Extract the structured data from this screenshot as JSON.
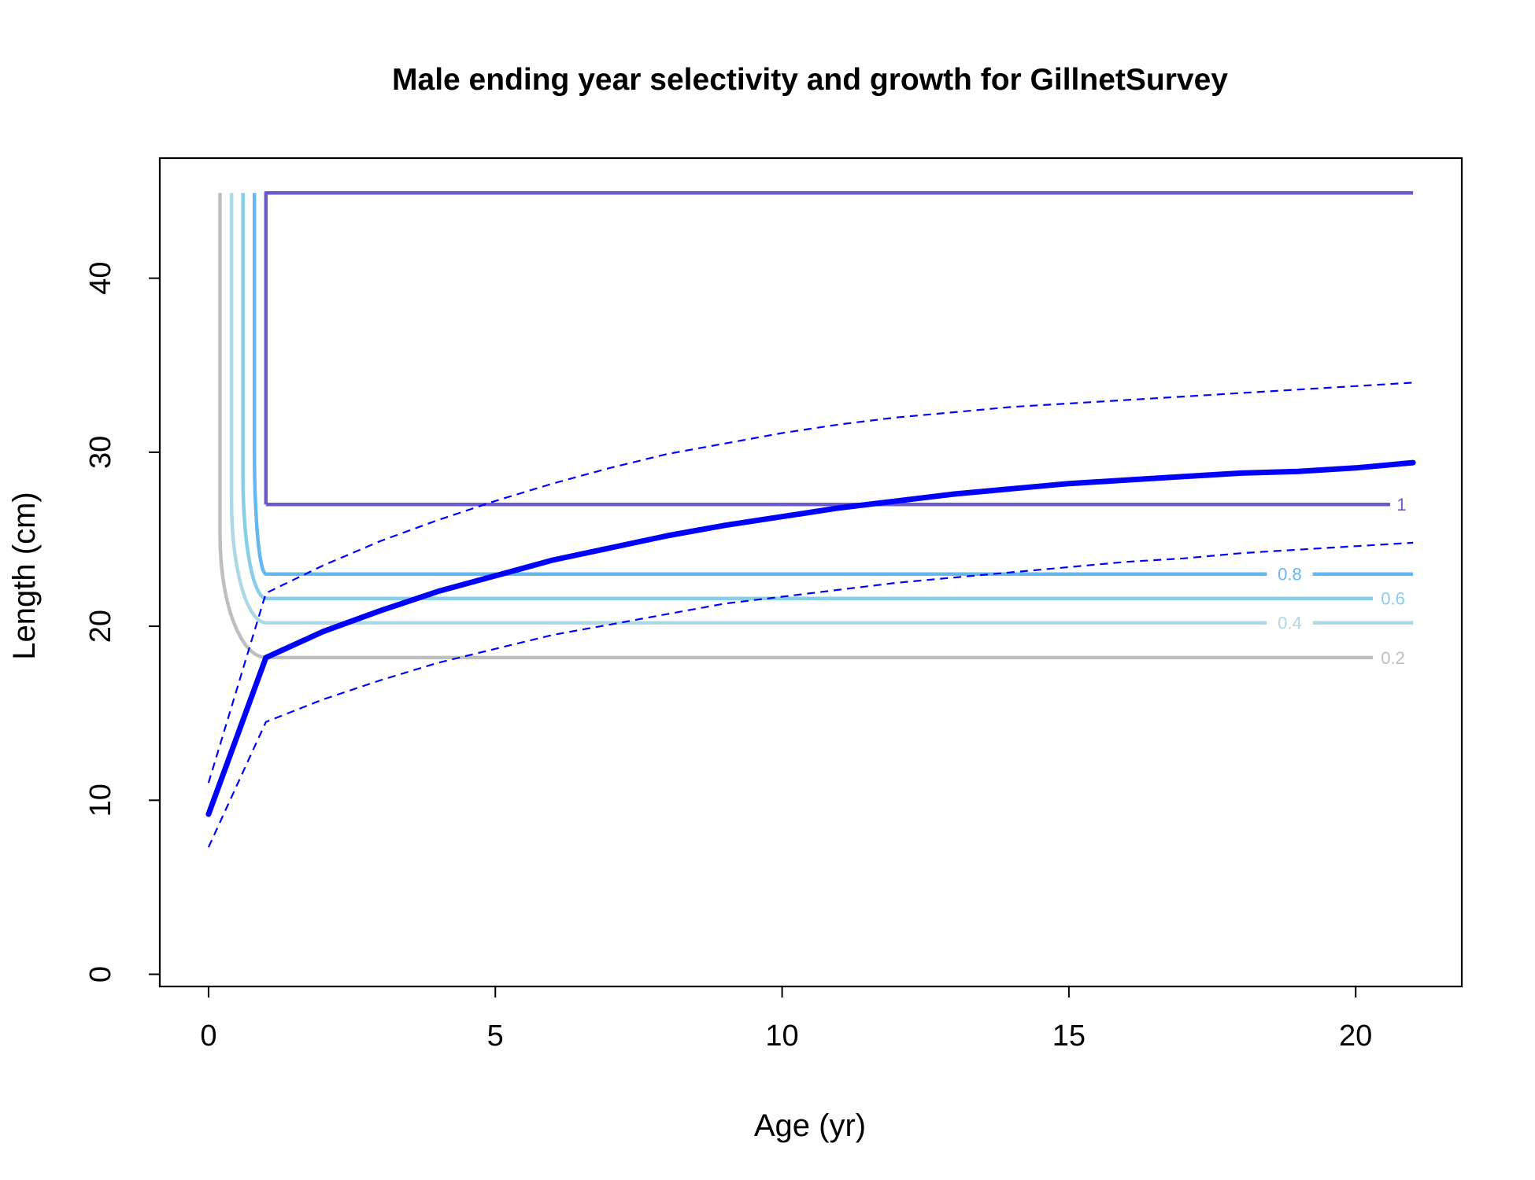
{
  "chart_data": {
    "type": "line",
    "title": "Male ending year selectivity and growth for GillnetSurvey",
    "xlabel": "Age (yr)",
    "ylabel": "Length (cm)",
    "xlim": [
      -0.85,
      21.85
    ],
    "ylim": [
      -0.7,
      46.9
    ],
    "xticks": [
      0,
      5,
      10,
      15,
      20
    ],
    "yticks": [
      0,
      10,
      20,
      30,
      40
    ],
    "x_tick_labels": [
      "0",
      "5",
      "10",
      "15",
      "20"
    ],
    "y_tick_labels": [
      "0",
      "10",
      "20",
      "30",
      "40"
    ],
    "grid": false,
    "legend": "none",
    "growth": {
      "color": "#0000FF",
      "x": [
        0,
        1,
        2,
        3,
        4,
        5,
        6,
        7,
        8,
        9,
        10,
        11,
        12,
        13,
        14,
        15,
        16,
        17,
        18,
        19,
        20,
        21
      ],
      "mean_length": [
        9.2,
        18.2,
        19.7,
        20.9,
        22.0,
        22.9,
        23.8,
        24.5,
        25.2,
        25.8,
        26.3,
        26.8,
        27.2,
        27.6,
        27.9,
        28.2,
        28.4,
        28.6,
        28.8,
        28.9,
        29.1,
        29.4
      ],
      "upper_interval": [
        11.0,
        21.9,
        23.5,
        24.9,
        26.1,
        27.2,
        28.2,
        29.1,
        29.9,
        30.5,
        31.1,
        31.6,
        32.0,
        32.3,
        32.6,
        32.8,
        33.0,
        33.2,
        33.4,
        33.6,
        33.8,
        34.0
      ],
      "lower_interval": [
        7.3,
        14.5,
        15.8,
        16.9,
        17.9,
        18.7,
        19.5,
        20.1,
        20.7,
        21.3,
        21.7,
        22.1,
        22.5,
        22.8,
        23.1,
        23.4,
        23.7,
        23.9,
        24.2,
        24.4,
        24.6,
        24.8
      ]
    },
    "selectivity_contours": [
      {
        "level": "0.2",
        "color": "#BEBEBE",
        "x_start": 0.2,
        "y_top": 44.9,
        "y_bottom": 18.2,
        "knee_x": 1.0,
        "x_end": 20.3,
        "label_x": 20.65
      },
      {
        "level": "0.4",
        "color": "#ADD8E6",
        "x_start": 0.4,
        "y_top": 44.9,
        "y_bottom": 20.2,
        "knee_x": 1.0,
        "x_end": 18.45,
        "label_x": 18.85,
        "x_resume": 19.25,
        "x_final": 21.0
      },
      {
        "level": "0.6",
        "color": "#87CEEB",
        "x_start": 0.6,
        "y_top": 44.9,
        "y_bottom": 21.6,
        "knee_x": 1.0,
        "x_end": 20.3,
        "label_x": 20.65
      },
      {
        "level": "0.8",
        "color": "#63B8F0",
        "x_start": 0.8,
        "y_top": 44.9,
        "y_bottom": 23.0,
        "knee_x": 1.0,
        "x_end": 18.45,
        "label_x": 18.85,
        "x_resume": 19.25,
        "x_final": 21.0
      },
      {
        "level": "1",
        "color": "#6A5ACD",
        "x_start": 1.0,
        "y_top": 44.9,
        "y_bottom": 27.0,
        "knee_x": 1.0,
        "x_end": 20.6,
        "label_x": 20.8,
        "top_x_end": 21.0
      }
    ]
  }
}
